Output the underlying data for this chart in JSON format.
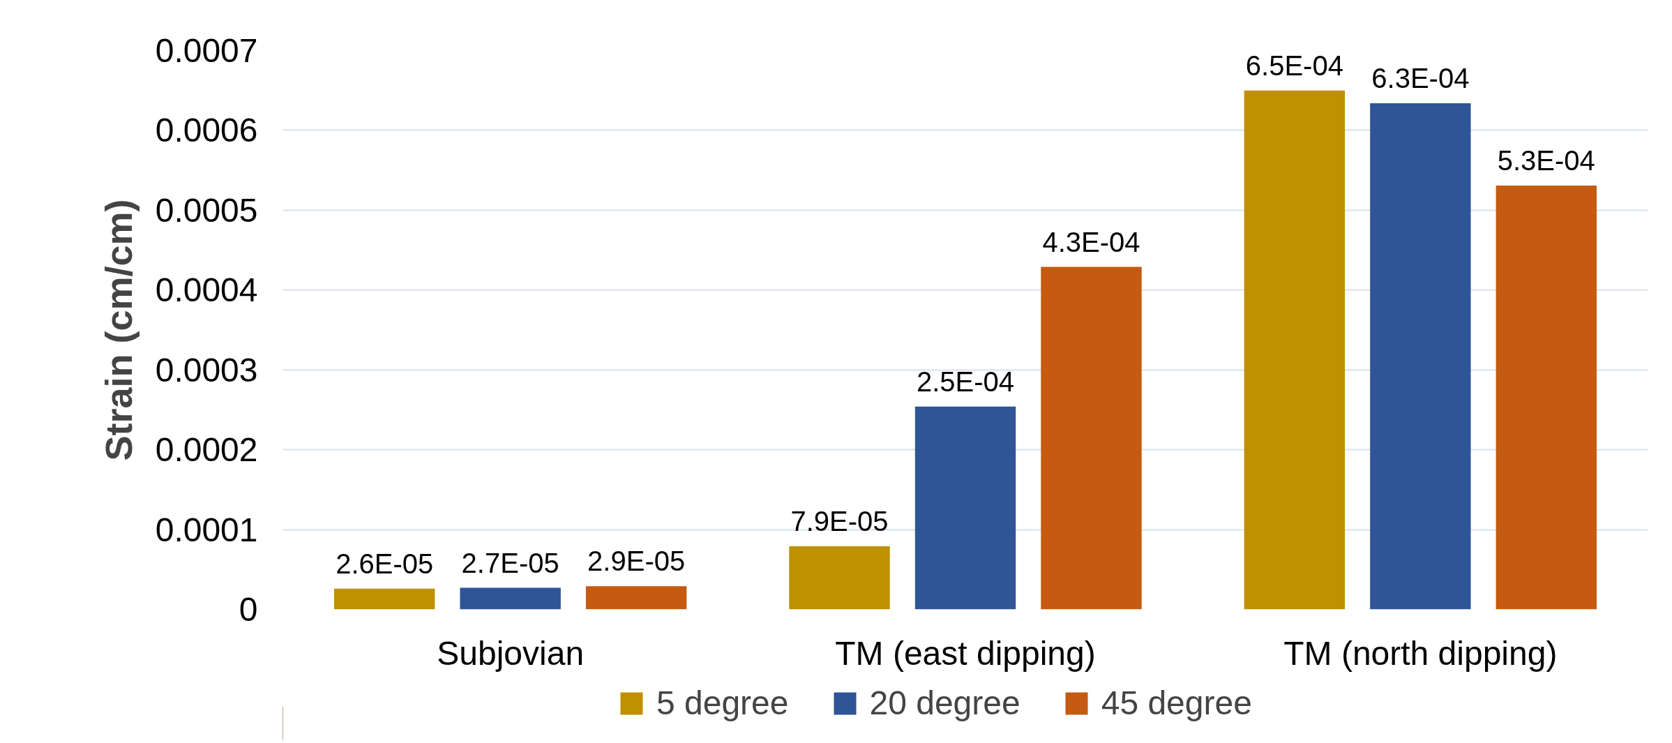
{
  "chart_data": {
    "type": "bar",
    "ylabel": "Strain (cm/cm)",
    "categories": [
      "Subjovian",
      "TM (east dipping)",
      "TM (north dipping)"
    ],
    "series": [
      {
        "name": "5 degree",
        "color": "#bf9000",
        "values": [
          2.6e-05,
          7.9e-05,
          0.00065
        ],
        "value_labels": [
          "2.6E-05",
          "7.9E-05",
          "6.5E-04"
        ]
      },
      {
        "name": "20 degree",
        "color": "#2f5597",
        "values": [
          2.7e-05,
          0.000254,
          0.000634
        ],
        "value_labels": [
          "2.7E-05",
          "2.5E-04",
          "6.3E-04"
        ]
      },
      {
        "name": "45 degree",
        "color": "#c55a11",
        "values": [
          2.9e-05,
          0.000429,
          0.000531
        ],
        "value_labels": [
          "2.9E-05",
          "4.3E-04",
          "5.3E-04"
        ]
      }
    ],
    "ylim": [
      0,
      0.0007
    ],
    "yticks": [
      0,
      0.0001,
      0.0002,
      0.0003,
      0.0004,
      0.0005,
      0.0006,
      0.0007
    ],
    "grid": "y",
    "legend": "bottom"
  }
}
